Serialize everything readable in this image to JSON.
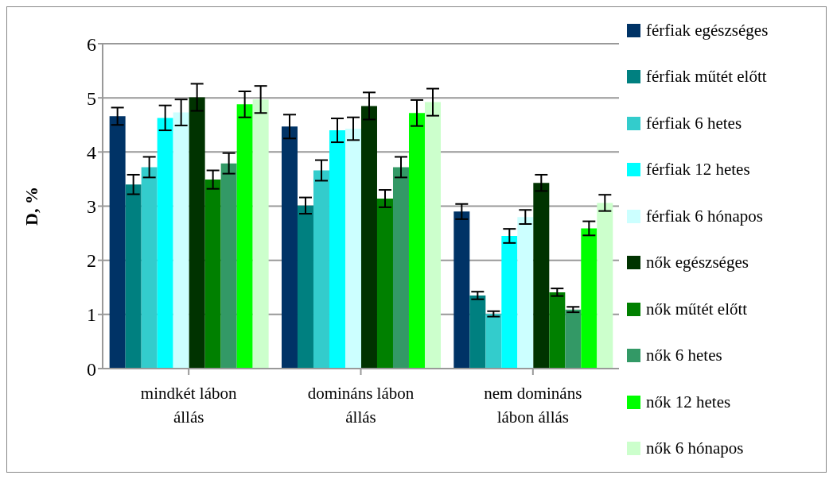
{
  "chart_data": {
    "type": "bar",
    "ylabel": "D, %",
    "categories": [
      "mindkét lábon állás",
      "domináns lábon állás",
      "nem domináns lábon állás"
    ],
    "ylim": [
      0,
      6
    ],
    "yticks": [
      0,
      1,
      2,
      3,
      4,
      5,
      6
    ],
    "grid": "y",
    "legend": "right",
    "series": [
      {
        "name": "férfiak egészséges",
        "color": "#003366",
        "values": [
          4.66,
          4.47,
          2.9
        ],
        "errors": [
          0.16,
          0.22,
          0.14
        ]
      },
      {
        "name": "férfiak műtét előtt",
        "color": "#008080",
        "values": [
          3.4,
          3.01,
          1.35
        ],
        "errors": [
          0.18,
          0.15,
          0.07
        ]
      },
      {
        "name": "férfiak 6 hetes",
        "color": "#33cccc",
        "values": [
          3.72,
          3.66,
          1.01
        ],
        "errors": [
          0.19,
          0.19,
          0.05
        ]
      },
      {
        "name": "férfiak 12 hetes",
        "color": "#00ffff",
        "values": [
          4.63,
          4.4,
          2.45
        ],
        "errors": [
          0.23,
          0.22,
          0.13
        ]
      },
      {
        "name": "férfiak 6 hónapos",
        "color": "#ccffff",
        "values": [
          4.73,
          4.43,
          2.8
        ],
        "errors": [
          0.24,
          0.21,
          0.13
        ]
      },
      {
        "name": "nők egészséges",
        "color": "#003300",
        "values": [
          5.01,
          4.85,
          3.43
        ],
        "errors": [
          0.25,
          0.25,
          0.15
        ]
      },
      {
        "name": "nők műtét előtt",
        "color": "#008000",
        "values": [
          3.49,
          3.14,
          1.41
        ],
        "errors": [
          0.17,
          0.16,
          0.07
        ]
      },
      {
        "name": "nők 6 hetes",
        "color": "#339966",
        "values": [
          3.79,
          3.72,
          1.09
        ],
        "errors": [
          0.19,
          0.19,
          0.05
        ]
      },
      {
        "name": "nők 12 hetes",
        "color": "#00ff00",
        "values": [
          4.88,
          4.72,
          2.59
        ],
        "errors": [
          0.24,
          0.24,
          0.13
        ]
      },
      {
        "name": "nők 6 hónapos",
        "color": "#ccffcc",
        "values": [
          4.97,
          4.92,
          3.06
        ],
        "errors": [
          0.25,
          0.25,
          0.15
        ]
      }
    ]
  }
}
